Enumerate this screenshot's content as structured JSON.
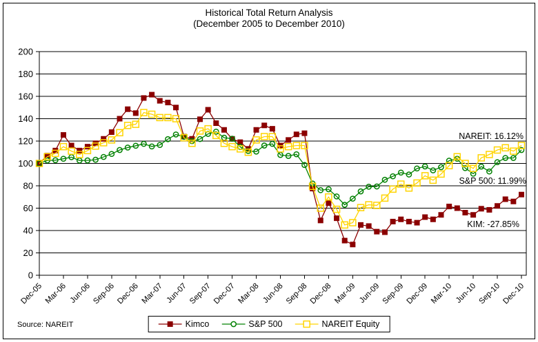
{
  "chart_data": {
    "type": "line",
    "title": "Historical Total Return Analysis",
    "subtitle": "(December 2005 to December 2010)",
    "source_note": "Source: NAREIT",
    "ylim": [
      0,
      200
    ],
    "y_tick_step": 20,
    "grid": true,
    "legend_position": "bottom",
    "x_tick_labels": [
      "Dec-05",
      "Mar-06",
      "Jun-06",
      "Sep-06",
      "Dec-06",
      "Mar-07",
      "Jun-07",
      "Sep-07",
      "Dec-07",
      "Mar-08",
      "Jun-08",
      "Sep-08",
      "Dec-08",
      "Mar-09",
      "Jun-09",
      "Sep-09",
      "Dec-09",
      "Mar-10",
      "Jun-10",
      "Sep-10",
      "Dec-10"
    ],
    "x_frequency": "monthly",
    "series": [
      {
        "name": "Kimco",
        "color": "#8B0000",
        "marker": "filled-square",
        "values": [
          100,
          107,
          111.5,
          125.5,
          116,
          111.5,
          115,
          118,
          122,
          128,
          140,
          148.5,
          145,
          158.5,
          161.5,
          156,
          154.5,
          150,
          124,
          122,
          139.5,
          148,
          136,
          130,
          122,
          119,
          113,
          130,
          134,
          131,
          116,
          121,
          126,
          127,
          77.5,
          49,
          64.5,
          51,
          31,
          27.5,
          45,
          44,
          39,
          38.5,
          48,
          50,
          48,
          47,
          52,
          50,
          54,
          61.5,
          60,
          56,
          54,
          59.5,
          58.5,
          62,
          68,
          66,
          72.15
        ]
      },
      {
        "name": "S&P 500",
        "color": "#008000",
        "marker": "open-circle",
        "values": [
          100,
          102.7,
          102.9,
          104.2,
          105.6,
          102.6,
          102.7,
          103.3,
          105.8,
          108.5,
          112,
          114.2,
          115.8,
          117.5,
          115.2,
          116.5,
          121.7,
          125.9,
          123.8,
          120,
          121.8,
          126.4,
          128.4,
          123,
          122.1,
          114.8,
          111.1,
          110.6,
          116,
          117.5,
          107.6,
          106.7,
          108.2,
          98.6,
          82,
          76.1,
          76.9,
          70.5,
          63,
          68.5,
          75,
          79.2,
          79.4,
          85.4,
          88.5,
          91.8,
          90.1,
          95.5,
          97.3,
          93.8,
          96.7,
          102.5,
          104.2,
          95.8,
          90.8,
          97.2,
          92.8,
          101.1,
          104.9,
          104.9,
          111.99
        ]
      },
      {
        "name": "NAREIT Equity",
        "color": "#FFD400",
        "marker": "open-square",
        "values": [
          100,
          106,
          109,
          115,
          111,
          108,
          111.5,
          115.5,
          118.5,
          121,
          127.5,
          134,
          135,
          145.5,
          144,
          141,
          141,
          140,
          123,
          118,
          129,
          131,
          125,
          118,
          115,
          113,
          110,
          121,
          124,
          124,
          113,
          115,
          116,
          116,
          79.5,
          60,
          70,
          59,
          45,
          47,
          60.5,
          63,
          62.5,
          69,
          77,
          81.5,
          78,
          82.5,
          89,
          85,
          90.5,
          98,
          106,
          100,
          95.5,
          105,
          108,
          112,
          114,
          111,
          116.12
        ]
      }
    ],
    "annotations": [
      {
        "text": "NAREIT: 16.12%",
        "series": "NAREIT Equity"
      },
      {
        "text": "S&P 500: 11.99%",
        "series": "S&P 500"
      },
      {
        "text": "KIM: -27.85%",
        "series": "Kimco"
      }
    ]
  }
}
